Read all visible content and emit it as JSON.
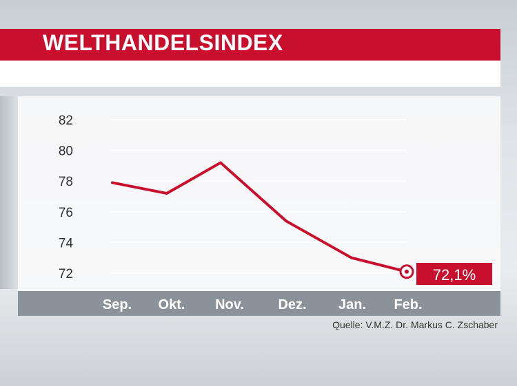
{
  "chart_data": {
    "type": "line",
    "title": "WELTHANDELSINDEX",
    "categories": [
      "Sep.",
      "Okt.",
      "Nov.",
      "Dez.",
      "Jan.",
      "Feb."
    ],
    "values": [
      77.9,
      77.2,
      79.2,
      75.4,
      73.0,
      72.1
    ],
    "yticks": [
      72,
      74,
      76,
      78,
      80,
      82
    ],
    "ylim": [
      71,
      83
    ],
    "last_value_label": "72,1%",
    "grid": true,
    "line_color": "#c8102e"
  },
  "source": "Quelle: V.M.Z. Dr. Markus C. Zschaber",
  "colors": {
    "accent": "#c8102e",
    "axis_band": "#8b9299"
  }
}
